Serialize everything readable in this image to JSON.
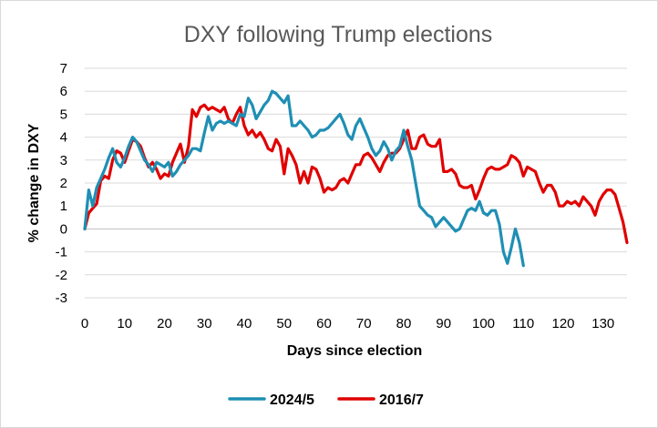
{
  "chart_data": {
    "type": "line",
    "title": "DXY following Trump elections",
    "xlabel": "Days since election",
    "ylabel": "% change in DXY",
    "xlim": [
      0,
      136
    ],
    "ylim": [
      -3,
      7
    ],
    "xticks": [
      0,
      10,
      20,
      30,
      40,
      50,
      60,
      70,
      80,
      90,
      100,
      110,
      120,
      130
    ],
    "yticks": [
      -3,
      -2,
      -1,
      0,
      1,
      2,
      3,
      4,
      5,
      6,
      7
    ],
    "grid": "horizontal",
    "legend_position": "bottom",
    "series": [
      {
        "name": "2024/5",
        "color": "#1f8fb4",
        "x": [
          0,
          1,
          2,
          3,
          4,
          5,
          6,
          7,
          8,
          9,
          10,
          11,
          12,
          13,
          14,
          15,
          16,
          17,
          18,
          19,
          20,
          21,
          22,
          23,
          24,
          25,
          26,
          27,
          28,
          29,
          30,
          31,
          32,
          33,
          34,
          35,
          36,
          37,
          38,
          39,
          40,
          41,
          42,
          43,
          44,
          45,
          46,
          47,
          48,
          49,
          50,
          51,
          52,
          53,
          54,
          55,
          56,
          57,
          58,
          59,
          60,
          61,
          62,
          63,
          64,
          65,
          66,
          67,
          68,
          69,
          70,
          71,
          72,
          73,
          74,
          75,
          76,
          77,
          78,
          79,
          80,
          81,
          82,
          83,
          84,
          85,
          86,
          87,
          88,
          89,
          90,
          91,
          92,
          93,
          94,
          95,
          96,
          97,
          98,
          99,
          100,
          101,
          102,
          103,
          104,
          105,
          106,
          107,
          108,
          109,
          110
        ],
        "values": [
          0.0,
          1.7,
          1.0,
          1.8,
          2.2,
          2.6,
          3.1,
          3.5,
          2.9,
          2.7,
          3.1,
          3.6,
          4.0,
          3.8,
          3.4,
          3.0,
          2.8,
          2.5,
          2.9,
          2.8,
          2.7,
          2.9,
          2.3,
          2.5,
          2.8,
          3.0,
          3.2,
          3.5,
          3.5,
          3.4,
          4.2,
          4.9,
          4.3,
          4.6,
          4.7,
          4.6,
          4.7,
          4.6,
          4.5,
          5.0,
          4.9,
          5.7,
          5.4,
          4.8,
          5.1,
          5.4,
          5.6,
          6.0,
          5.9,
          5.7,
          5.5,
          5.8,
          4.5,
          4.5,
          4.7,
          4.5,
          4.3,
          4.0,
          4.1,
          4.3,
          4.3,
          4.4,
          4.6,
          4.8,
          5.0,
          4.6,
          4.1,
          3.9,
          4.5,
          4.8,
          4.4,
          4.0,
          3.5,
          3.2,
          3.4,
          3.8,
          3.5,
          3.0,
          3.4,
          3.6,
          4.3,
          3.6,
          3.0,
          2.0,
          1.0,
          0.8,
          0.6,
          0.5,
          0.1,
          0.3,
          0.5,
          0.3,
          0.1,
          -0.1,
          0.0,
          0.4,
          0.8,
          0.9,
          0.8,
          1.2,
          0.7,
          0.6,
          0.8,
          0.8,
          0.2,
          -1.0,
          -1.5,
          -0.8,
          0.0,
          -0.6,
          -1.6
        ]
      },
      {
        "name": "2016/7",
        "color": "#e00000",
        "x": [
          0,
          1,
          2,
          3,
          4,
          5,
          6,
          7,
          8,
          9,
          10,
          11,
          12,
          13,
          14,
          15,
          16,
          17,
          18,
          19,
          20,
          21,
          22,
          23,
          24,
          25,
          26,
          27,
          28,
          29,
          30,
          31,
          32,
          33,
          34,
          35,
          36,
          37,
          38,
          39,
          40,
          41,
          42,
          43,
          44,
          45,
          46,
          47,
          48,
          49,
          50,
          51,
          52,
          53,
          54,
          55,
          56,
          57,
          58,
          59,
          60,
          61,
          62,
          63,
          64,
          65,
          66,
          67,
          68,
          69,
          70,
          71,
          72,
          73,
          74,
          75,
          76,
          77,
          78,
          79,
          80,
          81,
          82,
          83,
          84,
          85,
          86,
          87,
          88,
          89,
          90,
          91,
          92,
          93,
          94,
          95,
          96,
          97,
          98,
          99,
          100,
          101,
          102,
          103,
          104,
          105,
          106,
          107,
          108,
          109,
          110,
          111,
          112,
          113,
          114,
          115,
          116,
          117,
          118,
          119,
          120,
          121,
          122,
          123,
          124,
          125,
          126,
          127,
          128,
          129,
          130,
          131,
          132,
          133,
          134,
          135,
          136
        ],
        "values": [
          0.0,
          0.7,
          0.9,
          1.1,
          2.1,
          2.3,
          2.2,
          3.0,
          3.4,
          3.3,
          2.9,
          3.4,
          3.9,
          3.8,
          3.6,
          3.1,
          2.7,
          2.9,
          2.6,
          2.2,
          2.4,
          2.3,
          2.9,
          3.3,
          3.7,
          2.9,
          3.6,
          5.2,
          4.9,
          5.3,
          5.4,
          5.2,
          5.3,
          5.2,
          5.1,
          5.3,
          4.8,
          4.6,
          5.0,
          5.3,
          4.5,
          4.1,
          4.3,
          4.0,
          4.2,
          3.9,
          3.5,
          3.4,
          3.9,
          3.6,
          2.4,
          3.5,
          3.2,
          2.8,
          2.0,
          2.5,
          2.0,
          2.7,
          2.6,
          2.2,
          1.6,
          1.8,
          1.7,
          1.8,
          2.1,
          2.2,
          2.0,
          2.4,
          2.8,
          2.8,
          3.2,
          3.3,
          3.1,
          2.8,
          2.5,
          2.9,
          3.2,
          3.3,
          3.3,
          3.5,
          3.9,
          4.3,
          3.5,
          3.5,
          4.0,
          4.1,
          3.7,
          3.6,
          3.6,
          3.9,
          2.5,
          2.5,
          2.6,
          2.4,
          1.9,
          1.8,
          1.8,
          1.9,
          1.3,
          1.7,
          2.2,
          2.6,
          2.7,
          2.6,
          2.6,
          2.7,
          2.8,
          3.2,
          3.1,
          2.9,
          2.3,
          2.7,
          2.6,
          2.5,
          2.0,
          1.6,
          1.9,
          1.9,
          1.6,
          1.0,
          1.0,
          1.2,
          1.1,
          1.2,
          1.0,
          1.4,
          1.2,
          1.0,
          0.6,
          1.2,
          1.5,
          1.7,
          1.7,
          1.5,
          0.9,
          0.3,
          -0.6
        ]
      }
    ]
  }
}
